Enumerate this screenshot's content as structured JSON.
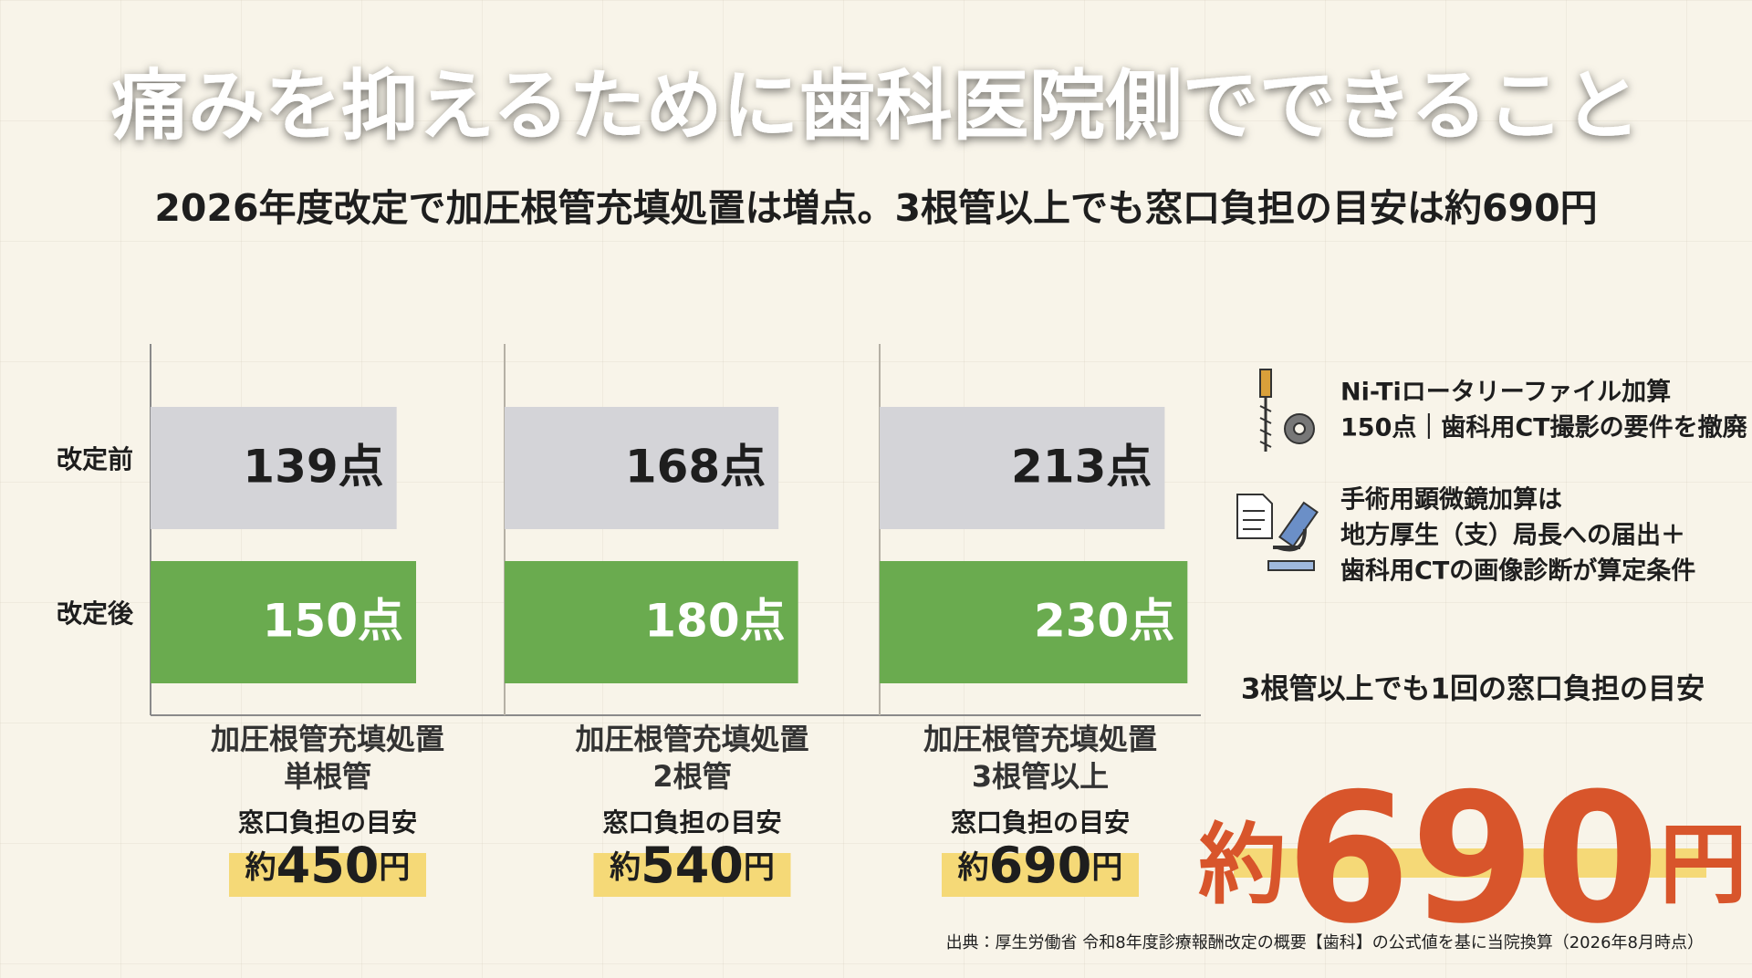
{
  "title": "痛みを抑えるために歯科医院側でできること",
  "subtitle": "2026年度改定で加圧根管充填処置は増点。3根管以上でも窓口負担の目安は約690円",
  "chart_data": [
    {
      "type": "bar",
      "orientation": "horizontal",
      "categories": [
        "改定前",
        "改定後"
      ],
      "values": [
        139,
        150
      ],
      "value_labels": [
        "139点",
        "150点"
      ],
      "colors": [
        "#d4d4d8",
        "#6aab4f"
      ],
      "xlim": [
        0,
        200
      ],
      "label_lines": [
        "加圧根管充填処置",
        "単根管"
      ],
      "cost_title": "窓口負担の目安",
      "cost_parts": [
        "約",
        "450",
        "円"
      ]
    },
    {
      "type": "bar",
      "orientation": "horizontal",
      "categories": [
        null,
        null
      ],
      "values": [
        168,
        180
      ],
      "value_labels": [
        "168点",
        "180点"
      ],
      "colors": [
        "#d4d4d8",
        "#6aab4f"
      ],
      "xlim": [
        0,
        230
      ],
      "label_lines": [
        "加圧根管充填処置",
        "2根管"
      ],
      "cost_title": "窓口負担の目安",
      "cost_parts": [
        "約",
        "540",
        "円"
      ]
    },
    {
      "type": "bar",
      "orientation": "horizontal",
      "categories": [
        null,
        null
      ],
      "values": [
        213,
        230
      ],
      "value_labels": [
        "213点",
        "230点"
      ],
      "colors": [
        "#d4d4d8",
        "#6aab4f"
      ],
      "xlim": [
        0,
        240
      ],
      "label_lines": [
        "加圧根管充填処置",
        "3根管以上"
      ],
      "cost_title": "窓口負担の目安",
      "cost_parts": [
        "約",
        "690",
        "円"
      ]
    }
  ],
  "notes": [
    {
      "lines": [
        "Ni-Tiロータリーファイル加算",
        "150点｜歯科用CT撮影の要件を撤廃"
      ]
    },
    {
      "lines": [
        "手術用顕微鏡加算は",
        "地方厚生（支）局長への届出＋",
        "歯科用CTの画像診断が算定条件"
      ]
    }
  ],
  "highlight": {
    "caption": "3根管以上でも1回の窓口負担の目安",
    "parts": [
      "約",
      "690",
      "円"
    ]
  },
  "source": "出典：厚生労働省 令和8年度診療報酬改定の概要【歯科】の公式値を基に当院換算（2026年8月時点）"
}
